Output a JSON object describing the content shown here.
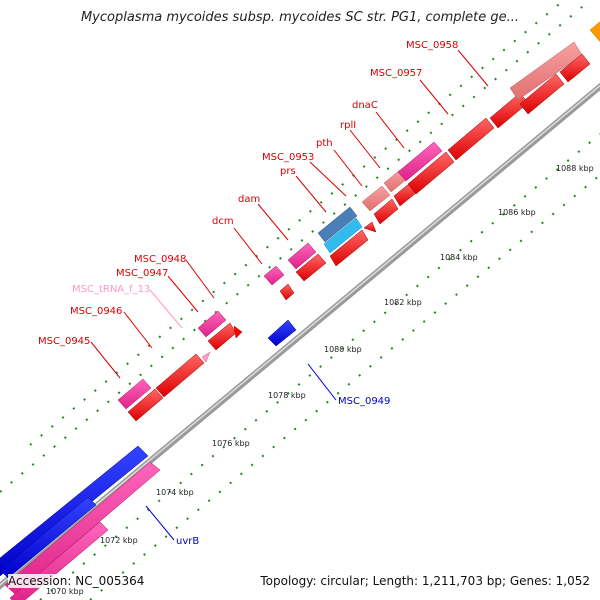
{
  "header": {
    "title": "Mycoplasma mycoides subsp. mycoides SC str. PG1, complete ge..."
  },
  "footer": {
    "accession": "Accession: NC_005364",
    "summary": "Topology: circular; Length: 1,211,703 bp; Genes: 1,052"
  },
  "colors": {
    "cds_red": "#ff0000",
    "cds_pink": "#ee3399",
    "cds_salmon": "#f08080",
    "cds_blue": "#0000ee",
    "cds_orange": "#ff9900",
    "rna_cyan": "#33bbee",
    "rna_steel": "#4a7fb5",
    "trna_light_pink": "#ff99cc",
    "backbone": "#888888",
    "tick_green": "#228822"
  },
  "scale": {
    "unit": "kbp",
    "tick_labels": [
      "1070 kbp",
      "1072 kbp",
      "1074 kbp",
      "1076 kbp",
      "1078 kbp",
      "1080 kbp",
      "1082 kbp",
      "1084 kbp",
      "1086 kbp",
      "1088 kbp"
    ]
  },
  "genes": [
    {
      "label": "MSC_0945",
      "color_key": "cds_red",
      "strand": "+"
    },
    {
      "label": "MSC_0946",
      "color_key": "cds_red",
      "strand": "+"
    },
    {
      "label": "MSC_tRNA_f_13",
      "color_key": "trna_light_pink",
      "strand": "+"
    },
    {
      "label": "MSC_0947",
      "color_key": "cds_red",
      "strand": "+"
    },
    {
      "label": "MSC_0948",
      "color_key": "cds_red",
      "strand": "+"
    },
    {
      "label": "dcm",
      "color_key": "cds_red",
      "strand": "+"
    },
    {
      "label": "dam",
      "color_key": "cds_red",
      "strand": "+"
    },
    {
      "label": "prs",
      "color_key": "cds_red",
      "strand": "+"
    },
    {
      "label": "MSC_0953",
      "color_key": "cds_red",
      "strand": "+"
    },
    {
      "label": "pth",
      "color_key": "cds_red",
      "strand": "+"
    },
    {
      "label": "rplI",
      "color_key": "cds_red",
      "strand": "+"
    },
    {
      "label": "dnaC",
      "color_key": "cds_red",
      "strand": "+"
    },
    {
      "label": "MSC_0957",
      "color_key": "cds_red",
      "strand": "+"
    },
    {
      "label": "MSC_0958",
      "color_key": "cds_red",
      "strand": "+"
    },
    {
      "label": "MSC_0949",
      "color_key": "cds_blue",
      "strand": "-"
    },
    {
      "label": "uvrB",
      "color_key": "cds_blue",
      "strand": "-"
    }
  ]
}
